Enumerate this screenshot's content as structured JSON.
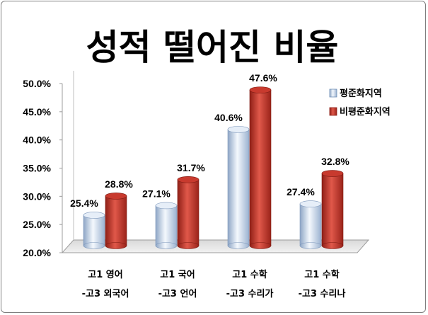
{
  "chart_data": {
    "type": "bar",
    "title": "성적 떨어진 비율",
    "categories": [
      [
        "고1 영어",
        "-고3 외국어"
      ],
      [
        "고1 국어",
        "-고3 언어"
      ],
      [
        "고1 수학",
        "-고3 수리가"
      ],
      [
        "고1 수학",
        "-고3 수리나"
      ]
    ],
    "series": [
      {
        "name": "평준화지역",
        "values": [
          25.4,
          27.1,
          40.6,
          27.4
        ],
        "labels": [
          "25.4%",
          "27.1%",
          "40.6%",
          "27.4%"
        ],
        "color": "#c5d6ec"
      },
      {
        "name": "비평준화지역",
        "values": [
          28.8,
          31.7,
          47.6,
          32.8
        ],
        "labels": [
          "28.8%",
          "31.7%",
          "47.6%",
          "32.8%"
        ],
        "color": "#c0392b"
      }
    ],
    "yticks": [
      "20.0%",
      "25.0%",
      "30.0%",
      "35.0%",
      "40.0%",
      "45.0%",
      "50.0%"
    ],
    "ylim": [
      20,
      50
    ],
    "legend_position": "top-right",
    "grid": false
  }
}
